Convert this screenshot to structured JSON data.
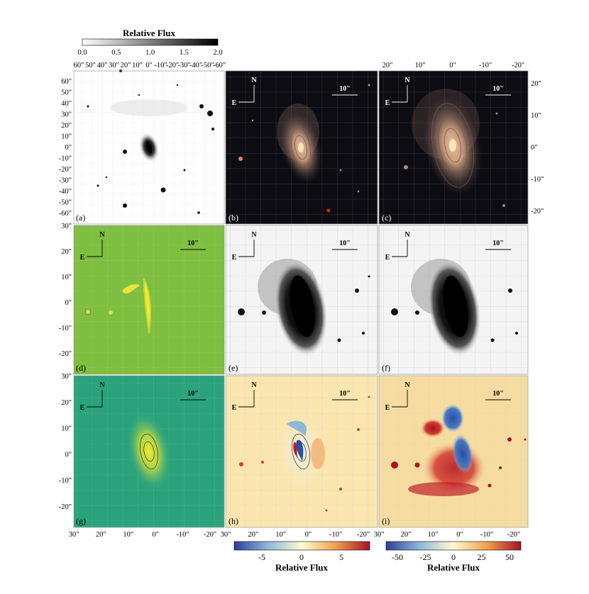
{
  "top_colorbar": {
    "title": "Relative Flux",
    "ticks": [
      "0.0",
      "0.5",
      "1.0",
      "1.5",
      "2.0"
    ],
    "colormap": "grayscale"
  },
  "top_axis_ticks": [
    "60\"",
    "50\"",
    "40\"",
    "30\"",
    "20\"",
    "10\"",
    "0\"",
    "-10\"",
    "-20\"",
    "-30\"",
    "-40\"",
    "-50\"",
    "-60\""
  ],
  "left_axis_ticks_a": [
    "60\"",
    "50\"",
    "40\"",
    "30\"",
    "20\"",
    "10\"",
    "0\"",
    "-10\"",
    "-20\"",
    "-30\"",
    "-40\"",
    "-50\"",
    "-60\""
  ],
  "top_axis_ticks_c": [
    "20\"",
    "10\"",
    "0\"",
    "-10\"",
    "-20\""
  ],
  "right_axis_ticks_c": [
    "20\"",
    "10\"",
    "0\"",
    "-10\"",
    "-20\""
  ],
  "left_axis_ticks_rows": [
    "30\"",
    "20\"",
    "10\"",
    "0\"",
    "-10\"",
    "-20\""
  ],
  "bottom_axis_ticks": [
    "30\"",
    "20\"",
    "10\"",
    "0\"",
    "-10\"",
    "-20\""
  ],
  "compass": {
    "north": "N",
    "east": "E",
    "scale": "10\""
  },
  "panels": [
    {
      "id": "a",
      "label": "(a)",
      "colors": {
        "bg": "#ffffff",
        "core": "#000000"
      }
    },
    {
      "id": "b",
      "label": "(b)",
      "colors": {
        "bg": "#0d0c12",
        "core": "#e8c090"
      }
    },
    {
      "id": "c",
      "label": "(c)",
      "colors": {
        "bg": "#0d0c12",
        "core": "#f0c898"
      }
    },
    {
      "id": "d",
      "label": "(d)",
      "colors": {
        "bg": "#7fbf3f",
        "core": "#f6ea2a"
      }
    },
    {
      "id": "e",
      "label": "(e)",
      "colors": {
        "bg": "#f4f4f4",
        "core": "#000000"
      }
    },
    {
      "id": "f",
      "label": "(f)",
      "colors": {
        "bg": "#f4f4f4",
        "core": "#000000"
      }
    },
    {
      "id": "g",
      "label": "(g)",
      "colors": {
        "bg": "#2aa37c",
        "core": "#e8e23a"
      }
    },
    {
      "id": "h",
      "label": "(h)",
      "colors": {
        "bg": "#fbe6b0",
        "core": "#2b4ea8"
      }
    },
    {
      "id": "i",
      "label": "(i)",
      "colors": {
        "bg": "#f6dca0",
        "core": "#b01020"
      }
    }
  ],
  "bottom_colorbars": [
    {
      "title": "Relative Flux",
      "ticks": [
        "-5",
        "0",
        "5"
      ],
      "colormap": "diverging blue-red",
      "colors": {
        "low": "#2b3f9e",
        "mid": "#fffbd0",
        "high": "#a3132a"
      }
    },
    {
      "title": "Relative Flux",
      "ticks": [
        "-50",
        "-25",
        "0",
        "25",
        "50"
      ],
      "colormap": "diverging blue-red",
      "colors": {
        "low": "#2b3f9e",
        "mid": "#fffbd0",
        "high": "#a3132a"
      }
    }
  ]
}
